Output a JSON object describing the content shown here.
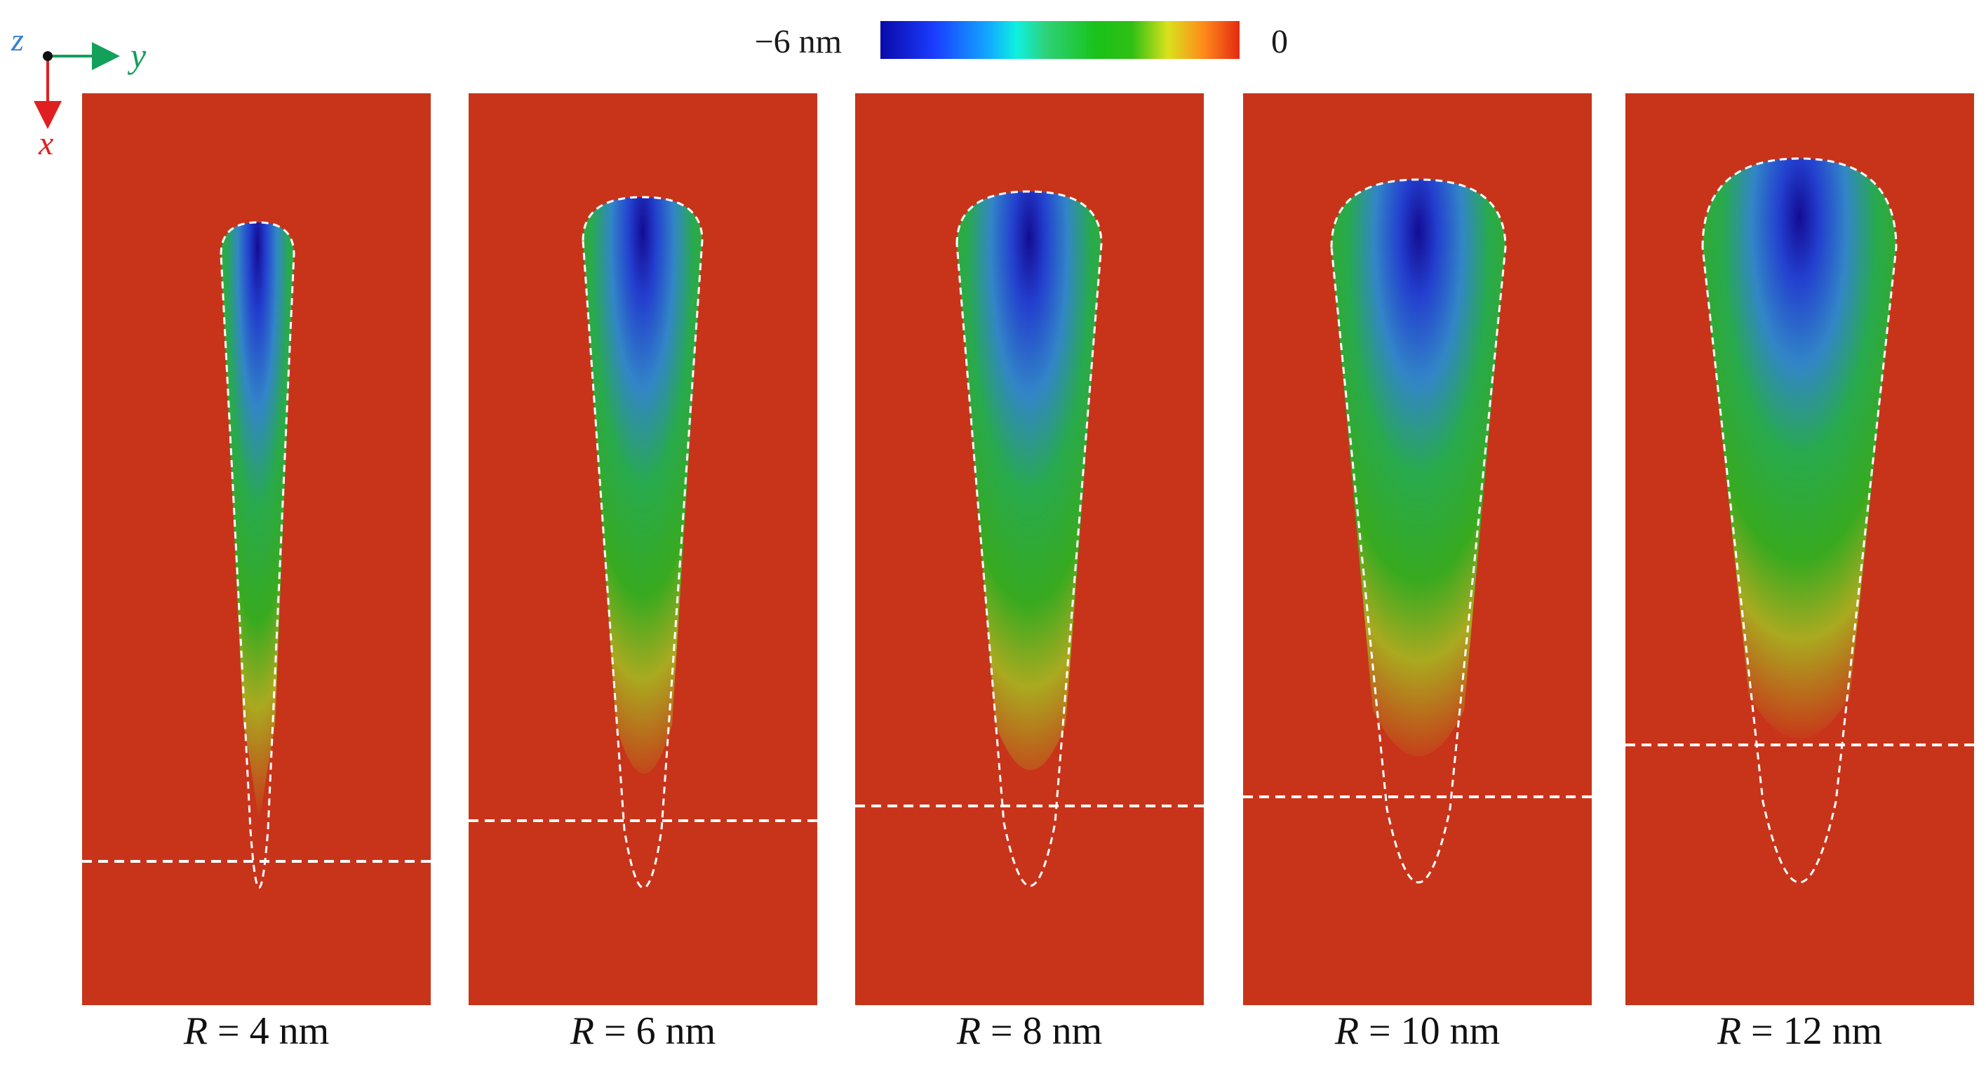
{
  "colorbar": {
    "min_label": "−6 nm",
    "max_label": "0",
    "colors": [
      "#0a0aa8",
      "#1a3cff",
      "#12a8ff",
      "#0ff0e0",
      "#19c21a",
      "#d9e21c",
      "#ff8a1a",
      "#e32a12"
    ]
  },
  "axes": {
    "z_label": "z",
    "y_label": "y",
    "x_label": "x",
    "z_color": "#3a7fd0",
    "y_color": "#12a05a",
    "x_color": "#e02020"
  },
  "background_color": "#c8341a",
  "outline_color": "#ffffff",
  "panels": [
    {
      "var": "R",
      "label_rest": " = 4 nm",
      "radius_nm": 4
    },
    {
      "var": "R",
      "label_rest": " = 6 nm",
      "radius_nm": 6
    },
    {
      "var": "R",
      "label_rest": " = 8 nm",
      "radius_nm": 8
    },
    {
      "var": "R",
      "label_rest": " = 10 nm",
      "radius_nm": 10
    },
    {
      "var": "R",
      "label_rest": " = 12 nm",
      "radius_nm": 12
    }
  ]
}
